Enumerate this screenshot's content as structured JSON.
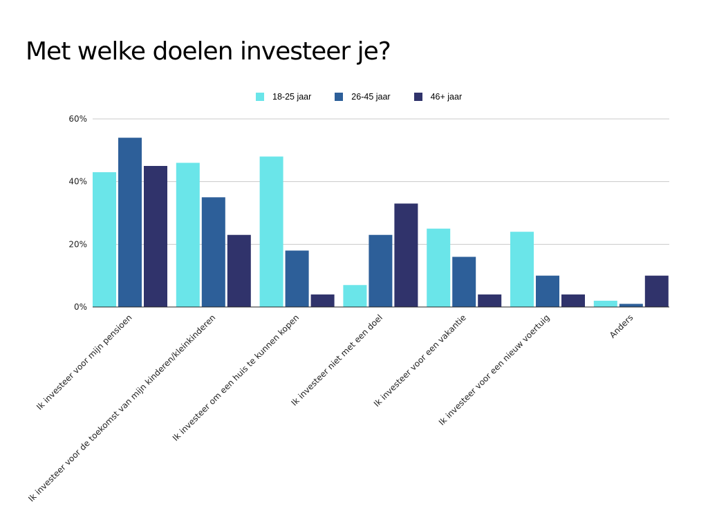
{
  "title": "Met welke doelen investeer je?",
  "chart_data": {
    "type": "bar",
    "title": "Met welke doelen investeer je?",
    "categories": [
      "Ik investeer voor mijn pensioen",
      "Ik investeer voor de toekomst van mijn kinderen/kleinkinderen",
      "Ik investeer om een huis te kunnen kopen",
      "Ik investeer niet met een doel",
      "Ik investeer voor een vakantie",
      "Ik investeer voor een nieuw voertuig",
      "Anders"
    ],
    "series": [
      {
        "name": "18-25 jaar",
        "color": "#6ae5e9",
        "values": [
          43,
          46,
          48,
          7,
          25,
          24,
          2
        ]
      },
      {
        "name": "26-45 jaar",
        "color": "#2d5f99",
        "values": [
          54,
          35,
          18,
          23,
          16,
          10,
          1
        ]
      },
      {
        "name": "46+ jaar",
        "color": "#30336b",
        "values": [
          45,
          23,
          4,
          33,
          4,
          4,
          10
        ]
      }
    ],
    "ylim": [
      0,
      60
    ],
    "yticks": [
      0,
      20,
      40,
      60
    ],
    "ytick_labels": [
      "0%",
      "20%",
      "40%",
      "60%"
    ],
    "grid": true,
    "legend_position": "top"
  }
}
